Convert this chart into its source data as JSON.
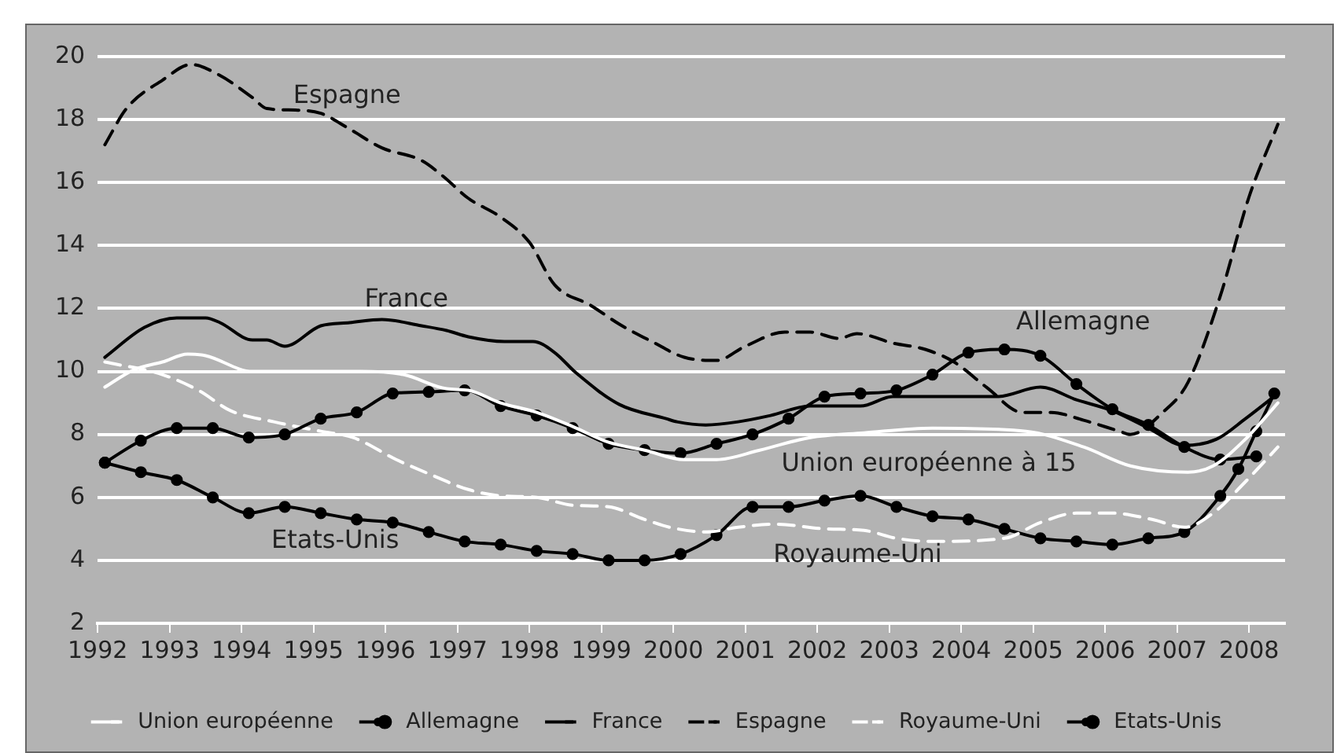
{
  "chart_data": {
    "type": "line",
    "xlim": [
      1992,
      2008.5
    ],
    "xticks": [
      1992,
      1993,
      1994,
      1995,
      1996,
      1997,
      1998,
      1999,
      2000,
      2001,
      2002,
      2003,
      2004,
      2005,
      2006,
      2007,
      2008
    ],
    "ylim": [
      2,
      20
    ],
    "yticks": [
      2,
      4,
      6,
      8,
      10,
      12,
      14,
      16,
      18,
      20
    ],
    "grid": "y",
    "legend": "bottom",
    "series": [
      {
        "name": "Union européenne",
        "color": "#ffffff",
        "line_style": "solid",
        "marker": "none",
        "x": [
          1992.1,
          1992.5,
          1992.9,
          1993.25,
          1993.5,
          1994.15,
          1995.1,
          1995.65,
          1996.25,
          1996.85,
          1997.15,
          1997.6,
          1998.1,
          1998.6,
          1999.1,
          1999.6,
          2000.15,
          2000.6,
          2001.2,
          2001.9,
          2002.65,
          2003.6,
          2004.9,
          2005.7,
          2006.35,
          2007.15,
          2007.5,
          2007.95,
          2008.4
        ],
        "values": [
          9.5,
          10.05,
          10.3,
          10.55,
          10.5,
          10.0,
          10.0,
          10.0,
          9.9,
          9.45,
          9.4,
          9.0,
          8.7,
          8.25,
          7.75,
          7.5,
          7.2,
          7.2,
          7.5,
          7.9,
          8.05,
          8.2,
          8.1,
          7.6,
          7.0,
          6.8,
          7.0,
          7.85,
          9.0
        ]
      },
      {
        "name": "Allemagne",
        "color": "#000000",
        "line_style": "solid",
        "marker": "circle",
        "x": [
          1992.1,
          1992.6,
          1993.1,
          1993.6,
          1994.1,
          1994.6,
          1995.1,
          1995.6,
          1996.1,
          1996.6,
          1997.1,
          1997.6,
          1998.1,
          1998.6,
          1999.1,
          1999.6,
          2000.1,
          2000.6,
          2001.1,
          2001.6,
          2002.1,
          2002.6,
          2003.1,
          2003.6,
          2004.1,
          2004.6,
          2005.1,
          2005.6,
          2006.1,
          2006.6,
          2007.1,
          2007.6,
          2008.1
        ],
        "values": [
          7.1,
          7.8,
          8.2,
          8.2,
          7.9,
          8.0,
          8.5,
          8.7,
          9.3,
          9.35,
          9.4,
          8.9,
          8.6,
          8.2,
          7.7,
          7.5,
          7.4,
          7.7,
          8.0,
          8.5,
          9.2,
          9.3,
          9.4,
          9.9,
          10.6,
          10.7,
          10.5,
          9.6,
          8.8,
          8.3,
          7.6,
          7.2,
          7.3
        ]
      },
      {
        "name": "France",
        "color": "#000000",
        "line_style": "solid",
        "marker": "none",
        "x": [
          1992.1,
          1992.65,
          1993.1,
          1993.5,
          1993.7,
          1994.15,
          1994.35,
          1994.6,
          1995.1,
          1995.5,
          1995.95,
          1996.5,
          1996.85,
          1997.15,
          1997.65,
          1998.05,
          1998.35,
          1998.65,
          1999.25,
          1999.9,
          2000.05,
          2000.45,
          2000.9,
          2001.35,
          2001.9,
          2002.6,
          2003.05,
          2004.5,
          2005.1,
          2005.6,
          2006.1,
          2006.6,
          2007.1,
          2007.55,
          2007.95,
          2008.4
        ],
        "values": [
          10.45,
          11.4,
          11.7,
          11.7,
          11.55,
          11.0,
          11.0,
          10.8,
          11.45,
          11.55,
          11.65,
          11.45,
          11.3,
          11.1,
          10.95,
          10.95,
          10.6,
          9.95,
          8.95,
          8.5,
          8.4,
          8.3,
          8.4,
          8.6,
          8.9,
          8.9,
          9.2,
          9.2,
          9.5,
          9.1,
          8.75,
          8.2,
          7.65,
          7.85,
          8.5,
          9.3
        ]
      },
      {
        "name": "Espagne",
        "color": "#000000",
        "line_style": "dashed",
        "marker": "none",
        "x": [
          1992.1,
          1992.4,
          1992.9,
          1993.3,
          1993.7,
          1994.15,
          1994.35,
          1994.75,
          1995.1,
          1995.5,
          1995.95,
          1996.5,
          1996.8,
          1997.15,
          1997.6,
          1998.0,
          1998.35,
          1998.85,
          1999.25,
          1999.7,
          2000.15,
          2000.6,
          2001.0,
          2001.55,
          2001.9,
          2002.3,
          2002.55,
          2003.05,
          2003.5,
          2003.9,
          2004.35,
          2004.85,
          2005.25,
          2005.7,
          2006.2,
          2006.35,
          2006.8,
          2007.15,
          2007.6,
          2008.0,
          2008.4
        ],
        "values": [
          17.2,
          18.35,
          19.25,
          19.75,
          19.4,
          18.7,
          18.35,
          18.3,
          18.2,
          17.7,
          17.1,
          16.7,
          16.2,
          15.5,
          14.9,
          14.1,
          12.75,
          12.1,
          11.5,
          10.95,
          10.45,
          10.35,
          10.8,
          11.25,
          11.25,
          11.05,
          11.2,
          10.9,
          10.7,
          10.3,
          9.5,
          8.7,
          8.7,
          8.45,
          8.1,
          8.0,
          8.7,
          9.65,
          12.4,
          15.55,
          17.85
        ]
      },
      {
        "name": "Royaume-Uni",
        "color": "#ffffff",
        "line_style": "dashed",
        "marker": "none",
        "x": [
          1992.1,
          1992.9,
          1993.4,
          1993.85,
          1994.45,
          1995.1,
          1995.55,
          1996.15,
          1996.6,
          1997.15,
          1997.6,
          1998.1,
          1998.6,
          1999.1,
          1999.6,
          1999.95,
          2000.45,
          2000.9,
          2001.4,
          2002.1,
          2002.65,
          2003.1,
          2003.6,
          2004.6,
          2005.1,
          2005.6,
          2006.1,
          2006.65,
          2007.1,
          2007.5,
          2007.95,
          2008.4
        ],
        "values": [
          10.3,
          9.9,
          9.4,
          8.75,
          8.4,
          8.1,
          7.9,
          7.2,
          6.75,
          6.25,
          6.05,
          6.0,
          5.75,
          5.7,
          5.3,
          5.05,
          4.9,
          5.05,
          5.15,
          5.0,
          4.95,
          4.7,
          4.6,
          4.7,
          5.2,
          5.5,
          5.5,
          5.3,
          5.05,
          5.5,
          6.5,
          7.6
        ]
      },
      {
        "name": "Etats-Unis",
        "color": "#000000",
        "line_style": "solid",
        "marker": "circle",
        "x": [
          1992.1,
          1992.6,
          1993.1,
          1993.6,
          1994.1,
          1994.6,
          1995.1,
          1995.6,
          1996.1,
          1996.6,
          1997.1,
          1997.6,
          1998.1,
          1998.6,
          1999.1,
          1999.6,
          2000.1,
          2000.6,
          2001.1,
          2001.6,
          2002.1,
          2002.6,
          2003.1,
          2003.6,
          2004.1,
          2004.6,
          2005.1,
          2005.6,
          2006.1,
          2006.6,
          2007.1,
          2007.6,
          2007.85,
          2008.1,
          2008.35
        ],
        "values": [
          7.1,
          6.8,
          6.55,
          6.0,
          5.5,
          5.7,
          5.5,
          5.3,
          5.2,
          4.9,
          4.6,
          4.5,
          4.3,
          4.2,
          4.0,
          4.0,
          4.2,
          4.8,
          5.7,
          5.7,
          5.9,
          6.05,
          5.7,
          5.4,
          5.3,
          5.0,
          4.7,
          4.6,
          4.5,
          4.7,
          4.9,
          6.05,
          6.9,
          8.1,
          9.3
        ]
      }
    ],
    "annotations": [
      "Espagne",
      "France",
      "Allemagne",
      "Union européenne à 15",
      "Royaume-Uni",
      "Etats-Unis"
    ]
  }
}
